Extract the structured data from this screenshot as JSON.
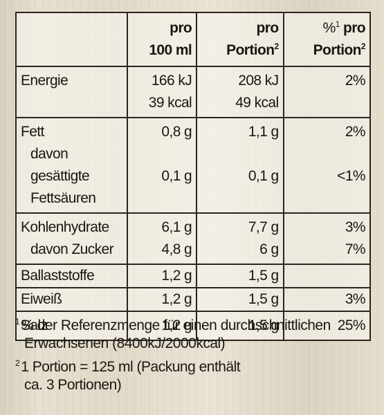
{
  "table": {
    "headers": [
      {
        "lines": [
          "",
          ""
        ]
      },
      {
        "lines": [
          "pro",
          "100 ml"
        ],
        "sup": ""
      },
      {
        "lines": [
          "pro",
          "Portion"
        ],
        "sup": "2"
      },
      {
        "lines_pre_sup": "%",
        "sup": "1",
        "lines": [
          " pro",
          "Portion"
        ],
        "sup2": "2"
      }
    ],
    "rows": {
      "energie": {
        "label": "Energie",
        "v100_1": "166 kJ",
        "v100_2": "39 kcal",
        "vp_1": "208 kJ",
        "vp_2": "49 kcal",
        "pct": "2%"
      },
      "fett": {
        "label": "Fett",
        "sub1a": "davon gesättigte",
        "sub1b": "Fettsäuren",
        "v100": "0,8 g",
        "v100_sub": "0,1 g",
        "vp": "1,1 g",
        "vp_sub": "0,1 g",
        "pct": "2%",
        "pct_sub": "<1%"
      },
      "kh": {
        "label": "Kohlenhydrate",
        "sub": "davon Zucker",
        "v100": "6,1 g",
        "v100_sub": "4,8 g",
        "vp": "7,7 g",
        "vp_sub": "6 g",
        "pct": "3%",
        "pct_sub": "7%"
      },
      "ballast": {
        "label": "Ballaststoffe",
        "v100": "1,2 g",
        "vp": "1,5 g",
        "pct": ""
      },
      "eiweiss": {
        "label": "Eiweiß",
        "v100": "1,2 g",
        "vp": "1,5 g",
        "pct": "3%"
      },
      "salz": {
        "label": "Salz",
        "v100": "1,2 g",
        "vp": "1,5 g",
        "pct": "25%"
      }
    }
  },
  "header": {
    "col2_line1": "pro",
    "col2_line2": "100 ml",
    "col3_line1": "pro",
    "col3_line2": "Portion",
    "col3_sup": "2",
    "col4_pct": "%",
    "col4_sup1": "1",
    "col4_line1": "pro",
    "col4_line2": "Portion",
    "col4_sup2": "2"
  },
  "footnotes": [
    {
      "mark": "1",
      "line1": "% der Referenzmenge für einen durchschnittlichen",
      "line2": "Erwachsenen (8400kJ/2000kcal)"
    },
    {
      "mark": "2",
      "line1": "1 Portion = 125 ml (Packung enthält",
      "line2": "ca. 3 Portionen)"
    }
  ]
}
